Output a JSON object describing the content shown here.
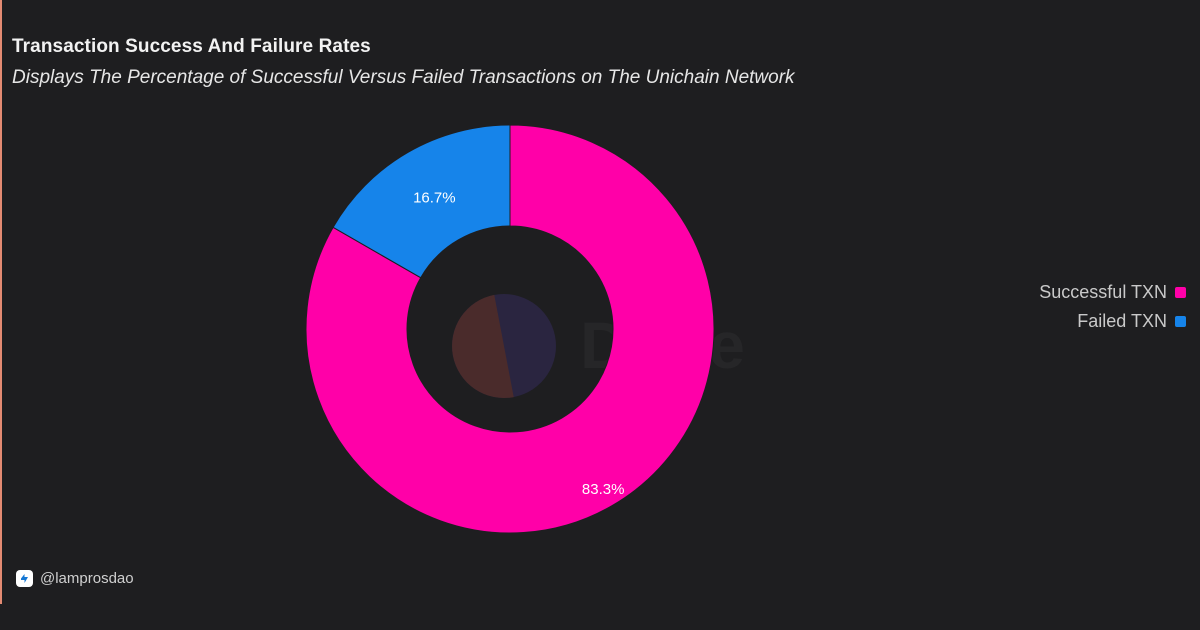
{
  "header": {
    "title": "Transaction Success And Failure Rates",
    "subtitle": "Displays The Percentage of Successful Versus Failed Transactions on The Unichain Network"
  },
  "chart_data": {
    "type": "pie",
    "style": "donut",
    "title": "Transaction Success And Failure Rates",
    "subtitle": "Displays The Percentage of Successful Versus Failed Transactions on The Unichain Network",
    "categories": [
      "Successful TXN",
      "Failed TXN"
    ],
    "values": [
      83.3,
      16.7
    ],
    "data_labels": [
      "83.3%",
      "16.7%"
    ],
    "colors": [
      "#ff00a8",
      "#1684ea"
    ],
    "legend_position": "right"
  },
  "watermark": {
    "text": "Dune"
  },
  "footer": {
    "handle": "@lamprosdao",
    "icon": "lamprosdao-logo-icon"
  },
  "theme": {
    "background": "#1e1e20",
    "accent_bar": "#e38a72"
  }
}
